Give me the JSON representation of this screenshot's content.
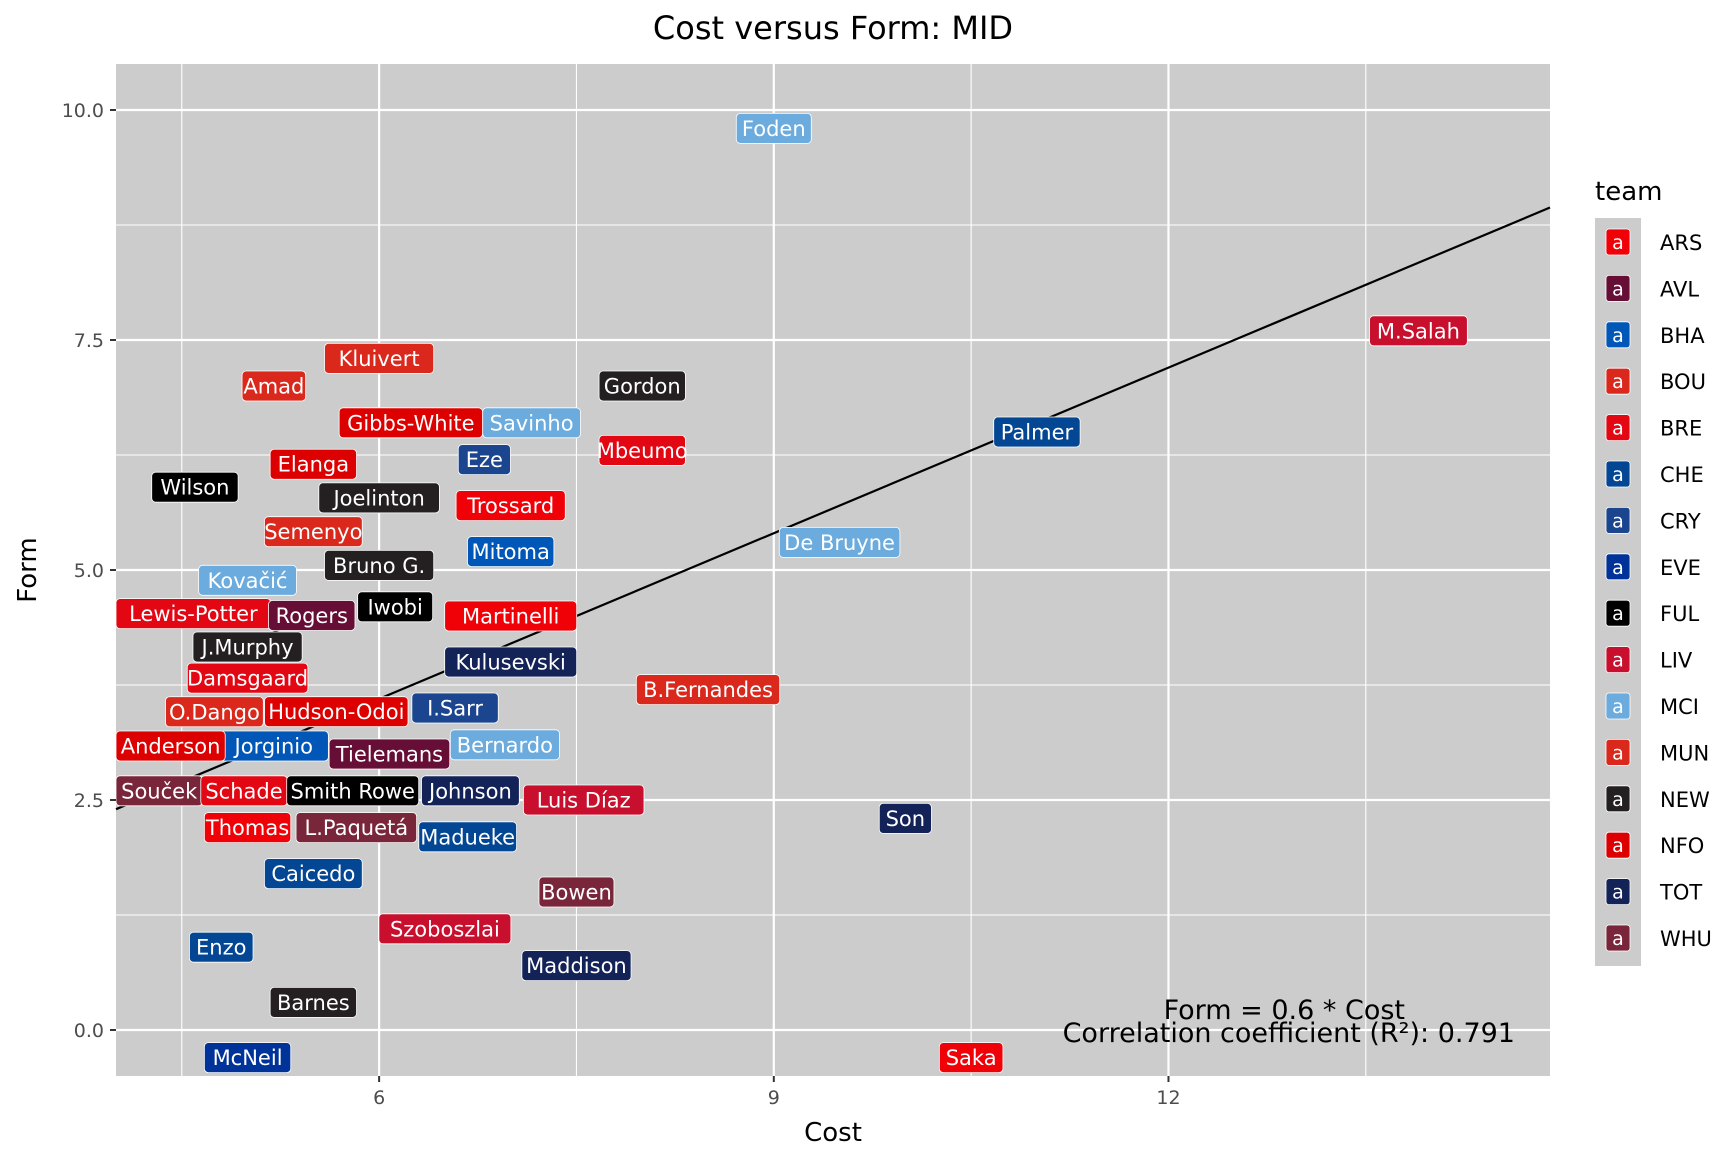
{
  "chart_data": {
    "type": "scatter",
    "title": "Cost versus Form: MID",
    "xlabel": "Cost",
    "ylabel": "Form",
    "xlim": [
      4.0,
      14.9
    ],
    "ylim": [
      -0.5,
      10.5
    ],
    "x_ticks": [
      6,
      9,
      12
    ],
    "y_ticks": [
      0.0,
      2.5,
      5.0,
      7.5,
      10.0
    ],
    "x_tick_labels": [
      "6",
      "9",
      "12"
    ],
    "y_tick_labels": [
      "0.0",
      "2.5",
      "5.0",
      "7.5",
      "10.0"
    ],
    "grid": true,
    "legend": {
      "title": "team",
      "position": "right",
      "key_glyph": "a",
      "entries": [
        {
          "team": "ARS",
          "color": "#EF0107"
        },
        {
          "team": "AVL",
          "color": "#670E36"
        },
        {
          "team": "BHA",
          "color": "#0057B8"
        },
        {
          "team": "BOU",
          "color": "#DA291C"
        },
        {
          "team": "BRE",
          "color": "#E30613"
        },
        {
          "team": "CHE",
          "color": "#034694"
        },
        {
          "team": "CRY",
          "color": "#1B458F"
        },
        {
          "team": "EVE",
          "color": "#003399"
        },
        {
          "team": "FUL",
          "color": "#000000"
        },
        {
          "team": "LIV",
          "color": "#C8102E"
        },
        {
          "team": "MCI",
          "color": "#6CABDD"
        },
        {
          "team": "MUN",
          "color": "#DA291C"
        },
        {
          "team": "NEW",
          "color": "#241F20"
        },
        {
          "team": "NFO",
          "color": "#DD0000"
        },
        {
          "team": "TOT",
          "color": "#132257"
        },
        {
          "team": "WHU",
          "color": "#7A263A"
        }
      ]
    },
    "regression": {
      "slope": 0.6,
      "intercept": 0.0,
      "equation": "Form  = 0.6 * Cost",
      "r2_text": "Correlation coefficient (R²): 0.791"
    },
    "points": [
      {
        "name": "Foden",
        "team": "MCI",
        "x": 9.0,
        "y": 9.8
      },
      {
        "name": "M.Salah",
        "team": "LIV",
        "x": 13.9,
        "y": 7.6
      },
      {
        "name": "Palmer",
        "team": "CHE",
        "x": 11.0,
        "y": 6.5
      },
      {
        "name": "Gordon",
        "team": "NEW",
        "x": 8.0,
        "y": 7.0
      },
      {
        "name": "Kluivert",
        "team": "BOU",
        "x": 6.0,
        "y": 7.3
      },
      {
        "name": "Amad",
        "team": "MUN",
        "x": 5.2,
        "y": 7.0
      },
      {
        "name": "Savinho",
        "team": "MCI",
        "x": 6.8,
        "y": 6.6
      },
      {
        "name": "Gibbs-White",
        "team": "NFO",
        "x": 6.6,
        "y": 6.6
      },
      {
        "name": "Mbeumo",
        "team": "BRE",
        "x": 8.0,
        "y": 6.3
      },
      {
        "name": "Eze",
        "team": "CRY",
        "x": 6.8,
        "y": 6.2
      },
      {
        "name": "Elanga",
        "team": "NFO",
        "x": 5.5,
        "y": 6.1
      },
      {
        "name": "Joelinton",
        "team": "NEW",
        "x": 6.0,
        "y": 5.8
      },
      {
        "name": "Wilson",
        "team": "FUL",
        "x": 4.6,
        "y": 5.9
      },
      {
        "name": "Trossard",
        "team": "ARS",
        "x": 7.0,
        "y": 5.7
      },
      {
        "name": "De Bruyne",
        "team": "MCI",
        "x": 9.5,
        "y": 5.3
      },
      {
        "name": "Semenyo",
        "team": "BOU",
        "x": 5.5,
        "y": 5.4
      },
      {
        "name": "Mitoma",
        "team": "BHA",
        "x": 7.0,
        "y": 5.2
      },
      {
        "name": "Bruno G.",
        "team": "NEW",
        "x": 6.0,
        "y": 5.1
      },
      {
        "name": "Kovačić",
        "team": "MCI",
        "x": 5.0,
        "y": 4.8
      },
      {
        "name": "Iwobi",
        "team": "FUL",
        "x": 6.0,
        "y": 4.6
      },
      {
        "name": "Martinelli",
        "team": "ARS",
        "x": 7.0,
        "y": 4.5
      },
      {
        "name": "Lewis-Potter",
        "team": "BRE",
        "x": 4.5,
        "y": 4.5
      },
      {
        "name": "Rogers",
        "team": "AVL",
        "x": 5.0,
        "y": 4.2
      },
      {
        "name": "J.Murphy",
        "team": "NEW",
        "x": 5.0,
        "y": 4.1
      },
      {
        "name": "Kulusevski",
        "team": "TOT",
        "x": 7.0,
        "y": 4.0
      },
      {
        "name": "Damsgaard",
        "team": "BRE",
        "x": 5.0,
        "y": 4.0
      },
      {
        "name": "B.Fernandes",
        "team": "MUN",
        "x": 8.5,
        "y": 3.7
      },
      {
        "name": "O.Dango",
        "team": "BOU",
        "x": 5.0,
        "y": 3.6
      },
      {
        "name": "Hudson-Odoi",
        "team": "NFO",
        "x": 5.5,
        "y": 3.6
      },
      {
        "name": "I.Sarr",
        "team": "CRY",
        "x": 6.5,
        "y": 3.5
      },
      {
        "name": "Jorginio",
        "team": "BHA",
        "x": 4.8,
        "y": 3.1
      },
      {
        "name": "Anderson",
        "team": "NFO",
        "x": 4.5,
        "y": 3.1
      },
      {
        "name": "Bernardo",
        "team": "MCI",
        "x": 6.5,
        "y": 3.1
      },
      {
        "name": "Tielemans",
        "team": "AVL",
        "x": 6.0,
        "y": 3.0
      },
      {
        "name": "Souček",
        "team": "WHU",
        "x": 4.5,
        "y": 2.6
      },
      {
        "name": "Schade",
        "team": "BRE",
        "x": 5.0,
        "y": 2.6
      },
      {
        "name": "Smith Rowe",
        "team": "FUL",
        "x": 5.5,
        "y": 2.6
      },
      {
        "name": "Johnson",
        "team": "TOT",
        "x": 6.5,
        "y": 2.6
      },
      {
        "name": "Luis Díaz",
        "team": "LIV",
        "x": 7.5,
        "y": 2.5
      },
      {
        "name": "Son",
        "team": "TOT",
        "x": 10.0,
        "y": 2.3
      },
      {
        "name": "Thomas",
        "team": "ARS",
        "x": 5.0,
        "y": 2.2
      },
      {
        "name": "L.Paquetá",
        "team": "WHU",
        "x": 6.0,
        "y": 2.2
      },
      {
        "name": "Madueke",
        "team": "CHE",
        "x": 6.5,
        "y": 2.1
      },
      {
        "name": "Caicedo",
        "team": "CHE",
        "x": 5.5,
        "y": 1.7
      },
      {
        "name": "Bowen",
        "team": "WHU",
        "x": 7.5,
        "y": 1.5
      },
      {
        "name": "Szoboszlai",
        "team": "LIV",
        "x": 6.5,
        "y": 1.1
      },
      {
        "name": "Enzo",
        "team": "CHE",
        "x": 4.8,
        "y": 0.9
      },
      {
        "name": "Maddison",
        "team": "TOT",
        "x": 7.5,
        "y": 0.7
      },
      {
        "name": "Barnes",
        "team": "NEW",
        "x": 5.5,
        "y": 0.3
      },
      {
        "name": "McNeil",
        "team": "EVE",
        "x": 5.0,
        "y": -0.3
      },
      {
        "name": "Saka",
        "team": "ARS",
        "x": 10.5,
        "y": -0.3
      }
    ]
  }
}
